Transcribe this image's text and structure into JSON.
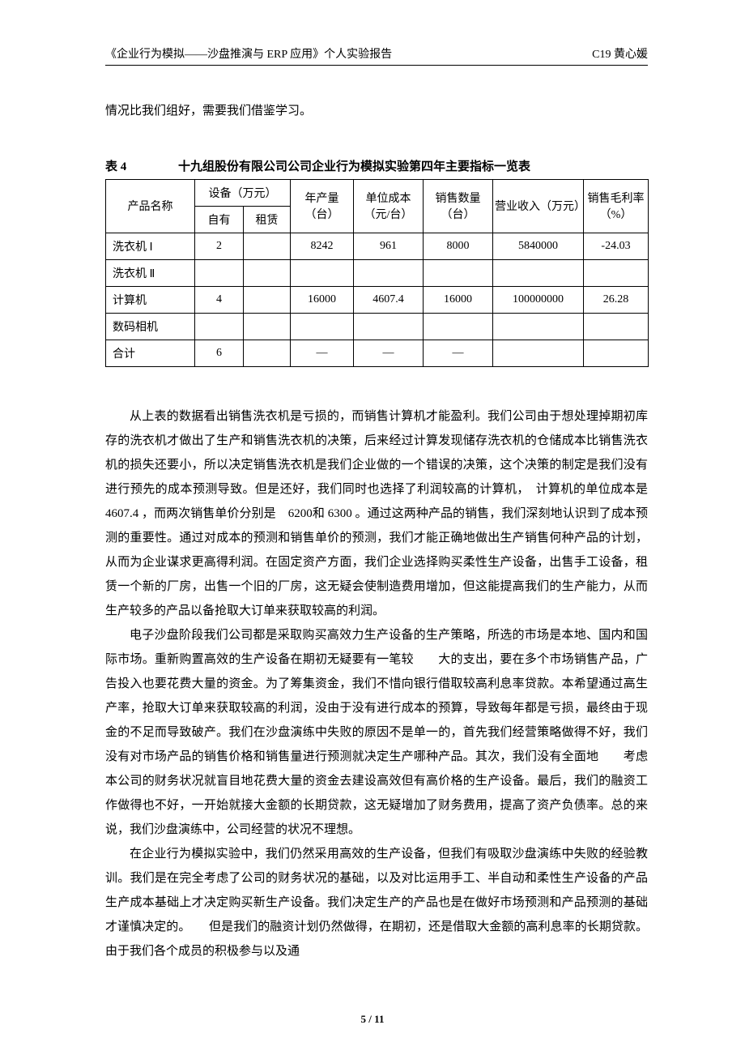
{
  "header": {
    "left": "《企业行为模拟——沙盘推演与 ERP 应用》个人实验报告",
    "right": "C19 黄心媛"
  },
  "intro_line": "情况比我们组好，需要我们借鉴学习。",
  "table": {
    "caption_label": "表 4",
    "caption_title": "十九组股份有限公司公司企业行为模拟实验第四年主要指标一览表",
    "headers": {
      "product": "产品名称",
      "equipment": "设备（万元）",
      "equip_own": "自有",
      "equip_rent": "租赁",
      "annual_output": "年产量（台）",
      "unit_cost": "单位成本（元/台）",
      "sales_qty": "销售数量（台）",
      "revenue": "营业收入（万元）",
      "gross_margin": "销售毛利率（%）"
    },
    "rows": [
      {
        "name": "洗衣机 Ⅰ",
        "own": "2",
        "rent": "",
        "output": "8242",
        "cost": "961",
        "qty": "8000",
        "rev": "5840000",
        "margin": "-24.03"
      },
      {
        "name": "洗衣机 Ⅱ",
        "own": "",
        "rent": "",
        "output": "",
        "cost": "",
        "qty": "",
        "rev": "",
        "margin": ""
      },
      {
        "name": "计算机",
        "own": "4",
        "rent": "",
        "output": "16000",
        "cost": "4607.4",
        "qty": "16000",
        "rev": "100000000",
        "margin": "26.28"
      },
      {
        "name": "数码相机",
        "own": "",
        "rent": "",
        "output": "",
        "cost": "",
        "qty": "",
        "rev": "",
        "margin": ""
      },
      {
        "name": "合计",
        "own": "6",
        "rent": "",
        "output": "—",
        "cost": "—",
        "qty": "—",
        "rev": "",
        "margin": ""
      }
    ]
  },
  "paragraphs": {
    "p1": "从上表的数据看出销售洗衣机是亏损的，而销售计算机才能盈利。我们公司由于想处理掉期初库存的洗衣机才做出了生产和销售洗衣机的决策，后来经过计算发现储存洗衣机的仓储成本比销售洗衣机的损失还要小，所以决定销售洗衣机是我们企业做的一个错误的决策，这个决策的制定是我们没有进行预先的成本预测导致。但是还好，我们同时也选择了利润较高的计算机，　计算机的单位成本是　4607.4 ，而两次销售单价分别是　6200和 6300 。通过这两种产品的销售，我们深刻地认识到了成本预测的重要性。通过对成本的预测和销售单价的预测，我们才能正确地做出生产销售何种产品的计划，从而为企业谋求更高得利润。在固定资产方面，我们企业选择购买柔性生产设备，出售手工设备，租赁一个新的厂房，出售一个旧的厂房，这无疑会使制造费用增加，但这能提高我们的生产能力，从而生产较多的产品以备抢取大订单来获取较高的利润。",
    "p2": "电子沙盘阶段我们公司都是采取购买高效力生产设备的生产策略，所选的市场是本地、国内和国际市场。重新购置高效的生产设备在期初无疑要有一笔较　　大的支出，要在多个市场销售产品，广告投入也要花费大量的资金。为了筹集资金，我们不惜向银行借取较高利息率贷款。本希望通过高生产率，抢取大订单来获取较高的利润，没由于没有进行成本的预算，导致每年都是亏损，最终由于现金的不足而导致破产。我们在沙盘演练中失败的原因不是单一的，首先我们经营策略做得不好，我们没有对市场产品的销售价格和销售量进行预测就决定生产哪种产品。其次，我们没有全面地　　考虑本公司的财务状况就盲目地花费大量的资金去建设高效但有高价格的生产设备。最后，我们的融资工作做得也不好，一开始就接大金额的长期贷款，这无疑增加了财务费用，提高了资产负债率。总的来说，我们沙盘演练中，公司经营的状况不理想。",
    "p3": "在企业行为模拟实验中，我们仍然采用高效的生产设备，但我们有吸取沙盘演练中失败的经验教训。我们是在完全考虑了公司的财务状况的基础，以及对比运用手工、半自动和柔性生产设备的产品生产成本基础上才决定购买新生产设备。我们决定生产的产品也是在做好市场预测和产品预测的基础才谨慎决定的。　　但是我们的融资计划仍然做得，在期初，还是借取大金额的高利息率的长期贷款。由于我们各个成员的积极参与以及通"
  },
  "footer": "5 / 11"
}
